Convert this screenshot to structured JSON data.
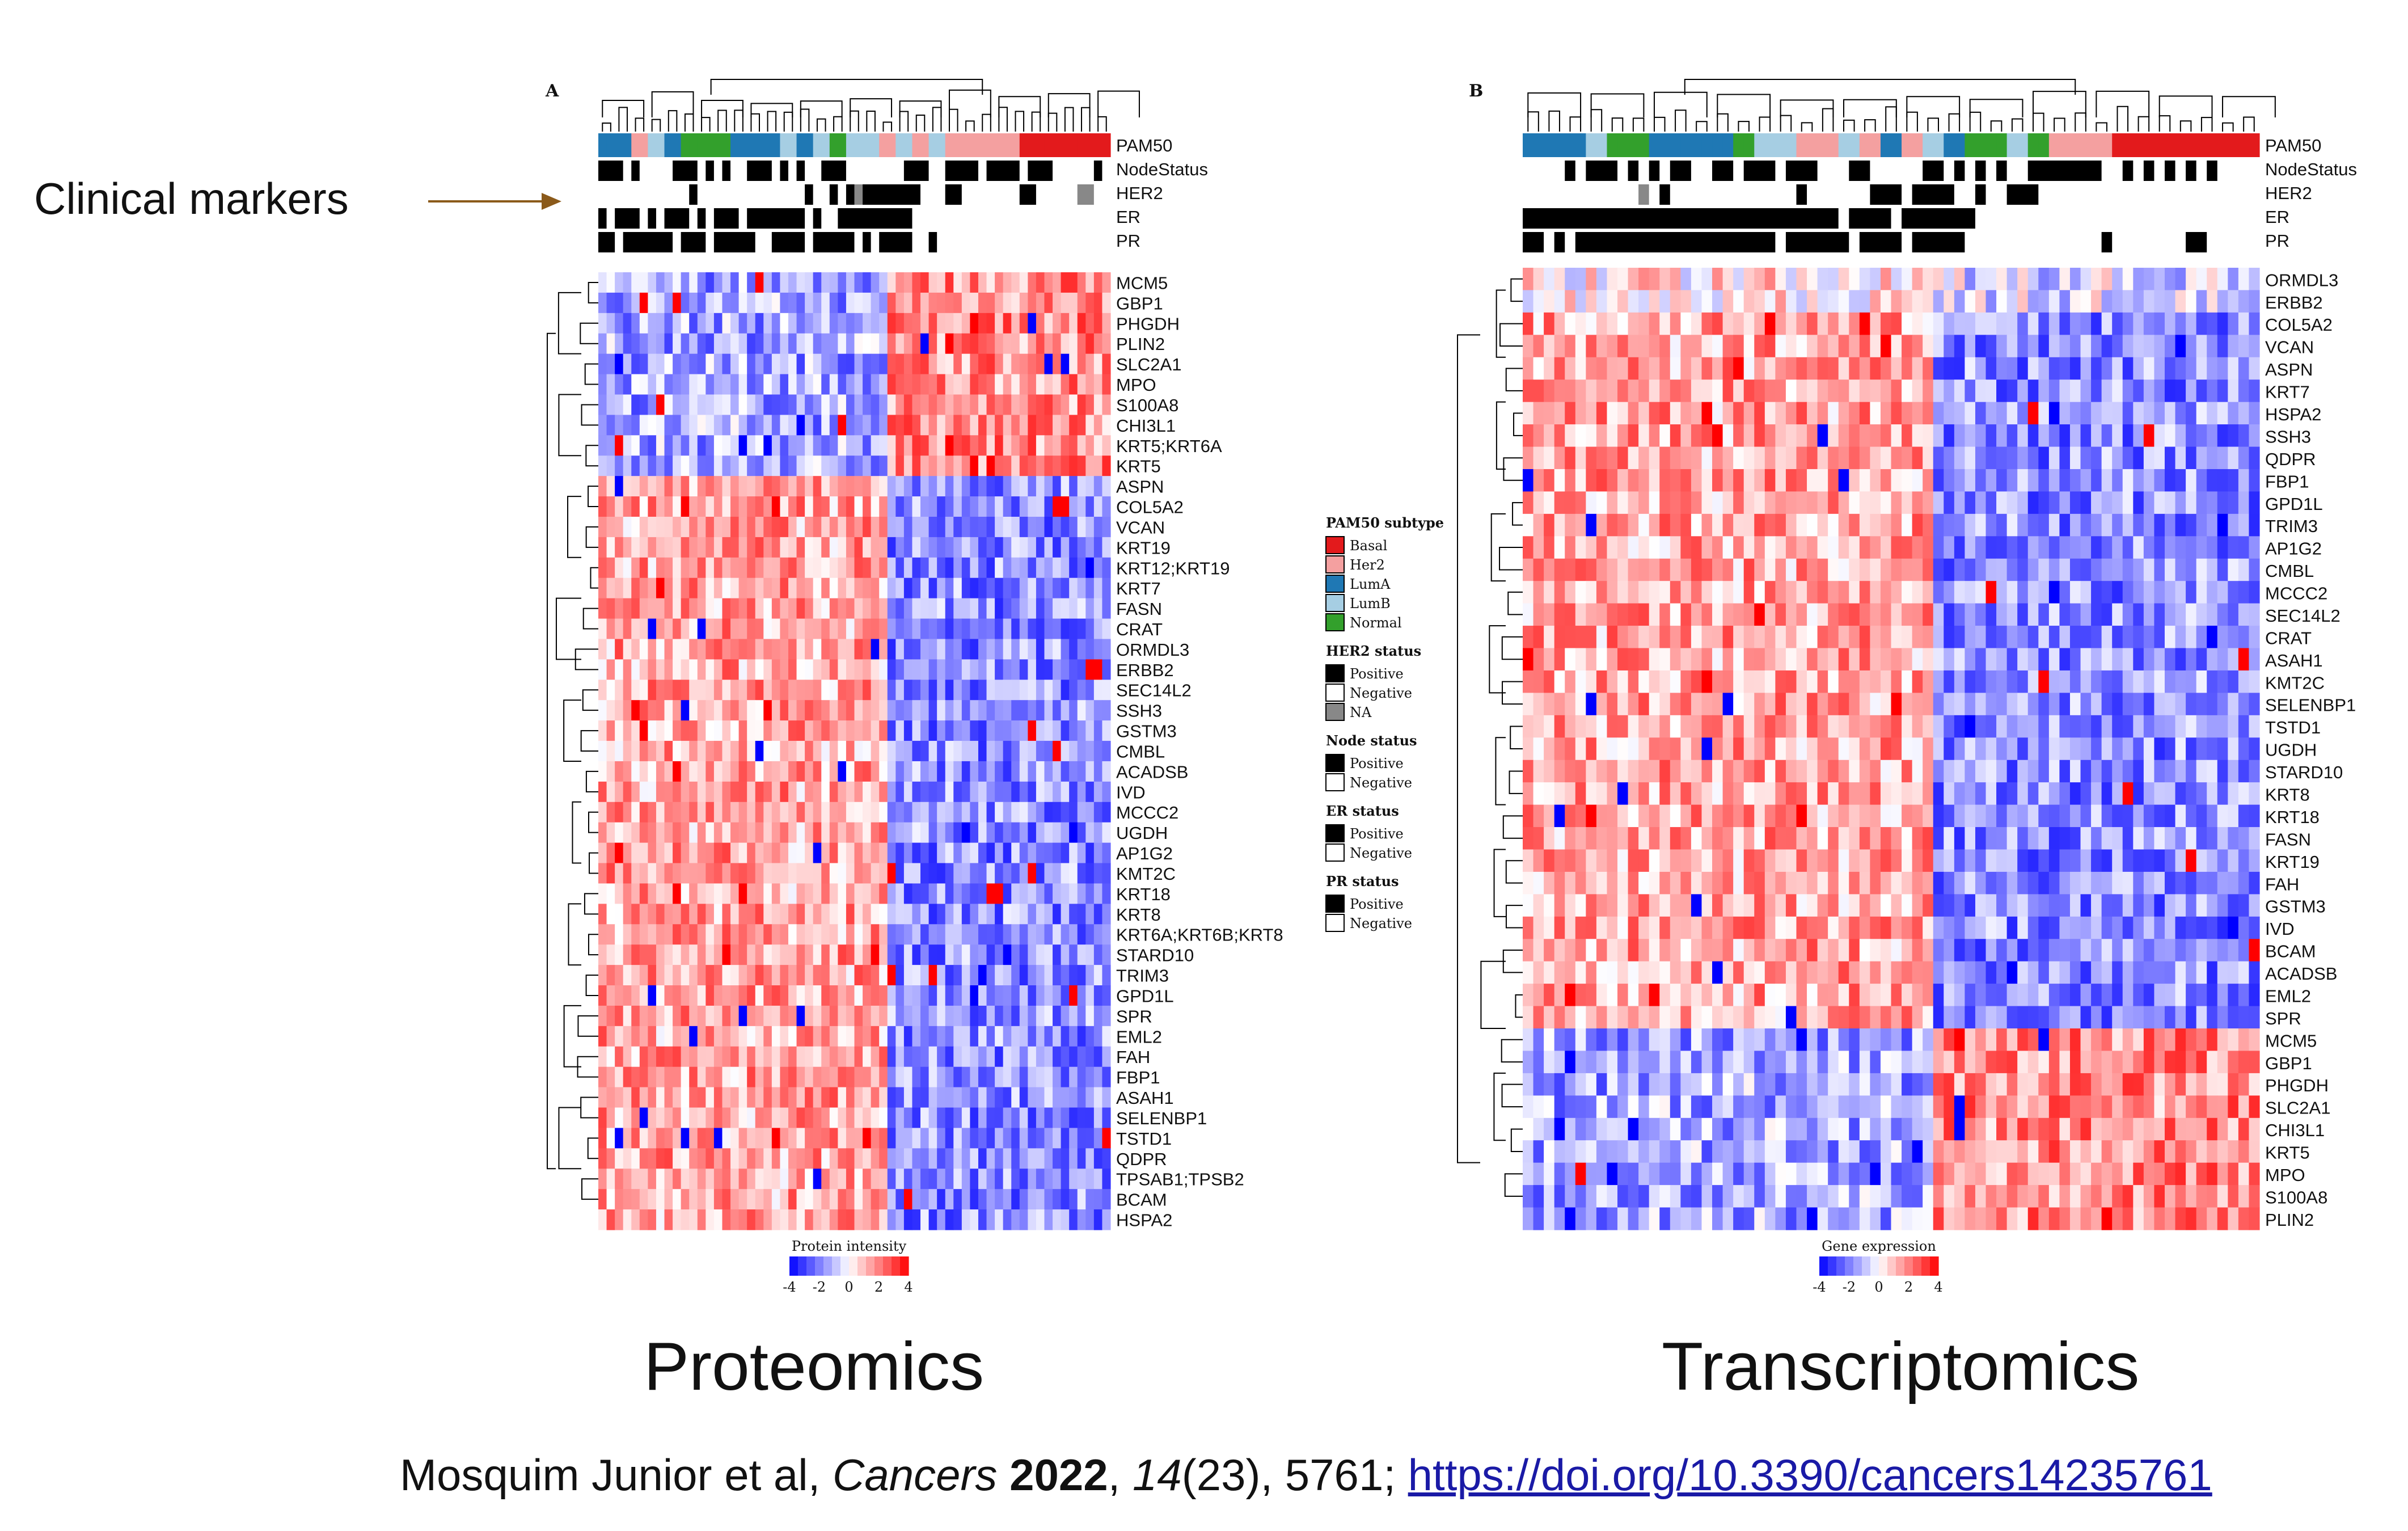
{
  "annotation": {
    "clinical_label": "Clinical markers",
    "arrow_color": "#8B5A1A"
  },
  "captions": {
    "proteomics": "Proteomics",
    "transcriptomics": "Transcriptomics"
  },
  "citation": {
    "authors": "Mosquim Junior et al, ",
    "journal": "Cancers",
    "year": "2022",
    "volume": "14",
    "issue": "(23), 5761; ",
    "doi_text": "https://doi.org/10.3390/cancers14235761"
  },
  "legend": {
    "pam50_title": "PAM50 subtype",
    "pam50_items": [
      {
        "label": "Basal",
        "color": "#e31a1c"
      },
      {
        "label": "Her2",
        "color": "#f4a0a0"
      },
      {
        "label": "LumA",
        "color": "#1f78b4"
      },
      {
        "label": "LumB",
        "color": "#a6cee3"
      },
      {
        "label": "Normal",
        "color": "#33a02c"
      }
    ],
    "her2_title": "HER2 status",
    "her2_items": [
      {
        "label": "Positive",
        "color": "#000000"
      },
      {
        "label": "Negative",
        "color": "#ffffff"
      },
      {
        "label": "NA",
        "color": "#888888"
      }
    ],
    "node_title": "Node status",
    "node_items": [
      {
        "label": "Positive",
        "color": "#000000"
      },
      {
        "label": "Negative",
        "color": "#ffffff"
      }
    ],
    "er_title": "ER status",
    "er_items": [
      {
        "label": "Positive",
        "color": "#000000"
      },
      {
        "label": "Negative",
        "color": "#ffffff"
      }
    ],
    "pr_title": "PR status",
    "pr_items": [
      {
        "label": "Positive",
        "color": "#000000"
      },
      {
        "label": "Negative",
        "color": "#ffffff"
      }
    ]
  },
  "chart_data": [
    {
      "type": "heatmap",
      "panel_label": "A",
      "colorbar_title": "Protein intensity",
      "colorbar_ticks": [
        "-4",
        "-2",
        "0",
        "2",
        "4"
      ],
      "value_range": [
        -4,
        4
      ],
      "color_scale": {
        "low": "#0000ff",
        "mid": "#ffffff",
        "high": "#ff0000"
      },
      "annotation_tracks": [
        "PAM50",
        "NodeStatus",
        "HER2",
        "ER",
        "PR"
      ],
      "rows": [
        "MCM5",
        "GBP1",
        "PHGDH",
        "PLIN2",
        "SLC2A1",
        "MPO",
        "S100A8",
        "CHI3L1",
        "KRT5;KRT6A",
        "KRT5",
        "ASPN",
        "COL5A2",
        "VCAN",
        "KRT19",
        "KRT12;KRT19",
        "KRT7",
        "FASN",
        "CRAT",
        "ORMDL3",
        "ERBB2",
        "SEC14L2",
        "SSH3",
        "GSTM3",
        "CMBL",
        "ACADSB",
        "IVD",
        "MCCC2",
        "UGDH",
        "AP1G2",
        "KMT2C",
        "KRT18",
        "KRT8",
        "KRT6A;KRT6B;KRT8",
        "STARD10",
        "TRIM3",
        "GPD1L",
        "SPR",
        "EML2",
        "FAH",
        "FBP1",
        "ASAH1",
        "SELENBP1",
        "TSTD1",
        "QDPR",
        "TPSAB1;TPSB2",
        "BCAM",
        "HSPA2"
      ]
    },
    {
      "type": "heatmap",
      "panel_label": "B",
      "colorbar_title": "Gene expression",
      "colorbar_ticks": [
        "-4",
        "-2",
        "0",
        "2",
        "4"
      ],
      "value_range": [
        -4,
        4
      ],
      "color_scale": {
        "low": "#0000ff",
        "mid": "#ffffff",
        "high": "#ff0000"
      },
      "annotation_tracks": [
        "PAM50",
        "NodeStatus",
        "HER2",
        "ER",
        "PR"
      ],
      "rows": [
        "ORMDL3",
        "ERBB2",
        "COL5A2",
        "VCAN",
        "ASPN",
        "KRT7",
        "HSPA2",
        "SSH3",
        "QDPR",
        "FBP1",
        "GPD1L",
        "TRIM3",
        "AP1G2",
        "CMBL",
        "MCCC2",
        "SEC14L2",
        "CRAT",
        "ASAH1",
        "KMT2C",
        "SELENBP1",
        "TSTD1",
        "UGDH",
        "STARD10",
        "KRT8",
        "KRT18",
        "FASN",
        "KRT19",
        "FAH",
        "GSTM3",
        "IVD",
        "BCAM",
        "ACADSB",
        "EML2",
        "SPR",
        "MCM5",
        "GBP1",
        "PHGDH",
        "SLC2A1",
        "CHI3L1",
        "KRT5",
        "MPO",
        "S100A8",
        "PLIN2"
      ]
    }
  ]
}
